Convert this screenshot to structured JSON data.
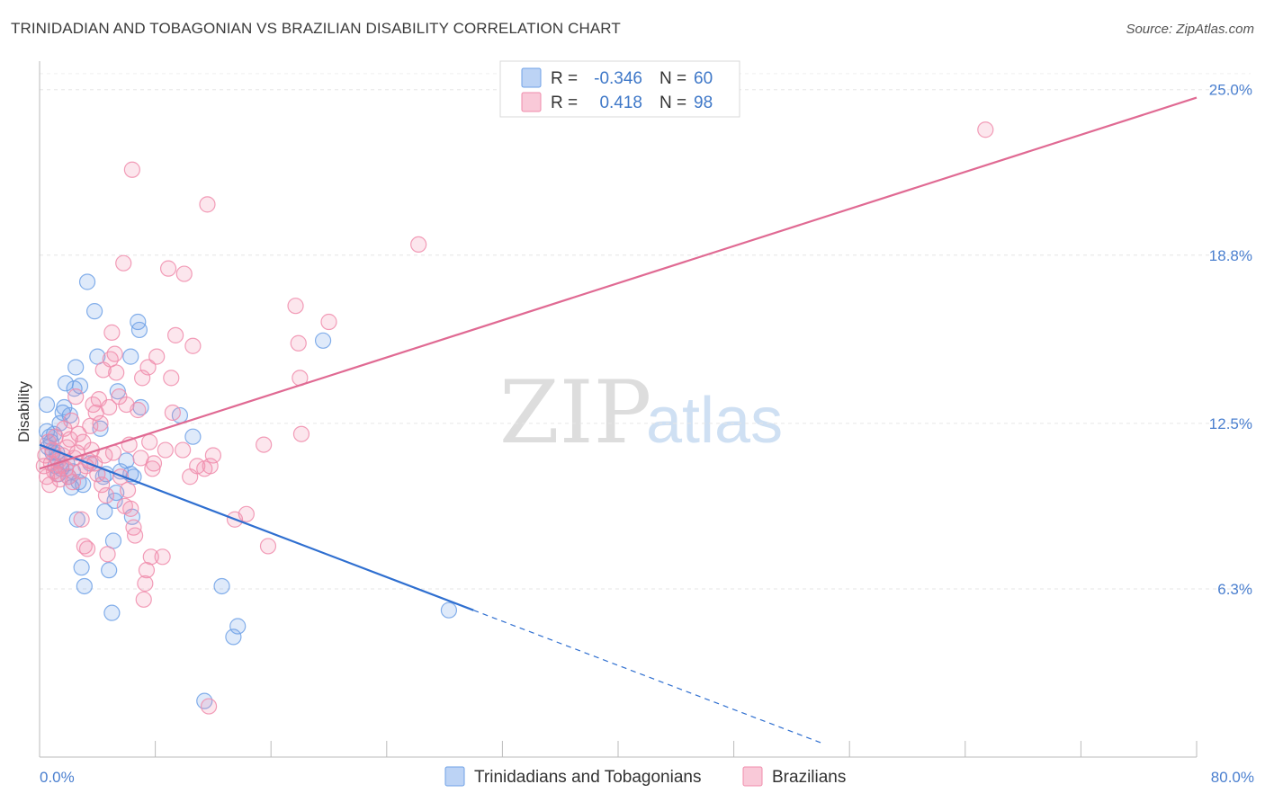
{
  "header": {
    "title": "TRINIDADIAN AND TOBAGONIAN VS BRAZILIAN DISABILITY CORRELATION CHART",
    "source": "Source: ZipAtlas.com"
  },
  "watermark": {
    "zip": "ZIP",
    "atlas": "atlas"
  },
  "chart_data": {
    "type": "scatter",
    "title": "TRINIDADIAN AND TOBAGONIAN VS BRAZILIAN DISABILITY CORRELATION CHART",
    "xlabel": "",
    "ylabel": "Disability",
    "xlim": [
      0,
      80
    ],
    "ylim": [
      0,
      26
    ],
    "x_tick_labels": [
      "0.0%",
      "80.0%"
    ],
    "y_ticks": [
      6.3,
      12.5,
      18.8,
      25.0
    ],
    "y_tick_labels": [
      "6.3%",
      "12.5%",
      "18.8%",
      "25.0%"
    ],
    "grid": true,
    "legend": {
      "placement": "top-center",
      "entries": [
        {
          "r_label": "R =",
          "r_value": "-0.346",
          "n_label": "N =",
          "n_value": "60"
        },
        {
          "r_label": "R =",
          "r_value": "0.418",
          "n_label": "N =",
          "n_value": "98"
        }
      ]
    },
    "series": [
      {
        "name": "Trinidadians and Tobagonians",
        "color": "#6fa1e6",
        "line_color": "#2f6fd0",
        "trend": {
          "x0": 0,
          "y0": 11.7,
          "x1": 30,
          "y1": 5.5,
          "dashed_to_x": 54
        },
        "points": [
          [
            0.5,
            13.2
          ],
          [
            0.5,
            12.2
          ],
          [
            0.6,
            11.6
          ],
          [
            0.7,
            12.0
          ],
          [
            0.8,
            11.8
          ],
          [
            0.9,
            11.4
          ],
          [
            1.0,
            12.1
          ],
          [
            1.1,
            10.9
          ],
          [
            1.2,
            11.2
          ],
          [
            1.3,
            10.6
          ],
          [
            1.4,
            12.5
          ],
          [
            1.5,
            10.8
          ],
          [
            1.6,
            12.9
          ],
          [
            1.7,
            13.1
          ],
          [
            1.8,
            14.0
          ],
          [
            1.9,
            11.0
          ],
          [
            2.0,
            10.5
          ],
          [
            2.1,
            12.8
          ],
          [
            2.2,
            10.1
          ],
          [
            2.3,
            10.7
          ],
          [
            2.4,
            13.8
          ],
          [
            2.5,
            14.6
          ],
          [
            2.6,
            8.9
          ],
          [
            2.7,
            10.3
          ],
          [
            2.8,
            13.9
          ],
          [
            2.9,
            7.1
          ],
          [
            3.0,
            10.2
          ],
          [
            3.1,
            6.4
          ],
          [
            3.3,
            17.8
          ],
          [
            3.5,
            11.0
          ],
          [
            3.8,
            16.7
          ],
          [
            4.0,
            15.0
          ],
          [
            4.2,
            12.3
          ],
          [
            4.4,
            10.5
          ],
          [
            4.5,
            9.2
          ],
          [
            4.6,
            10.6
          ],
          [
            4.8,
            7.0
          ],
          [
            5.0,
            5.4
          ],
          [
            5.1,
            8.1
          ],
          [
            5.2,
            9.6
          ],
          [
            5.3,
            9.9
          ],
          [
            5.4,
            13.7
          ],
          [
            5.6,
            10.7
          ],
          [
            6.0,
            11.1
          ],
          [
            6.3,
            15.0
          ],
          [
            6.3,
            10.6
          ],
          [
            6.4,
            9.0
          ],
          [
            6.5,
            10.5
          ],
          [
            6.8,
            16.3
          ],
          [
            6.9,
            16.0
          ],
          [
            7.0,
            13.1
          ],
          [
            9.7,
            12.8
          ],
          [
            10.6,
            12.0
          ],
          [
            11.4,
            2.1
          ],
          [
            12.6,
            6.4
          ],
          [
            13.4,
            4.5
          ],
          [
            13.7,
            4.9
          ],
          [
            19.6,
            15.6
          ],
          [
            28.3,
            5.5
          ],
          [
            1.2,
            11.4
          ]
        ]
      },
      {
        "name": "Brazilians",
        "color": "#f08cab",
        "line_color": "#e06a93",
        "trend": {
          "x0": 0,
          "y0": 10.8,
          "x1": 80,
          "y1": 24.7
        },
        "points": [
          [
            0.3,
            10.9
          ],
          [
            0.4,
            11.3
          ],
          [
            0.5,
            10.5
          ],
          [
            0.6,
            11.8
          ],
          [
            0.7,
            10.2
          ],
          [
            0.8,
            11.0
          ],
          [
            0.9,
            11.5
          ],
          [
            1.0,
            10.7
          ],
          [
            1.1,
            12.0
          ],
          [
            1.2,
            10.6
          ],
          [
            1.3,
            11.1
          ],
          [
            1.4,
            10.4
          ],
          [
            1.5,
            10.9
          ],
          [
            1.6,
            11.3
          ],
          [
            1.7,
            12.3
          ],
          [
            1.8,
            10.8
          ],
          [
            1.9,
            11.6
          ],
          [
            2.0,
            10.5
          ],
          [
            2.1,
            11.9
          ],
          [
            2.2,
            12.6
          ],
          [
            2.3,
            10.3
          ],
          [
            2.4,
            11.2
          ],
          [
            2.5,
            13.5
          ],
          [
            2.6,
            11.4
          ],
          [
            2.7,
            12.1
          ],
          [
            2.8,
            10.7
          ],
          [
            2.9,
            8.9
          ],
          [
            3.0,
            11.8
          ],
          [
            3.1,
            7.9
          ],
          [
            3.2,
            10.9
          ],
          [
            3.3,
            7.8
          ],
          [
            3.4,
            11.1
          ],
          [
            3.5,
            12.4
          ],
          [
            3.6,
            11.5
          ],
          [
            3.7,
            13.2
          ],
          [
            3.8,
            11.0
          ],
          [
            3.9,
            12.9
          ],
          [
            4.0,
            10.6
          ],
          [
            4.1,
            13.4
          ],
          [
            4.2,
            12.5
          ],
          [
            4.3,
            10.2
          ],
          [
            4.4,
            14.5
          ],
          [
            4.5,
            11.3
          ],
          [
            4.6,
            9.8
          ],
          [
            4.7,
            7.6
          ],
          [
            4.8,
            13.1
          ],
          [
            4.9,
            14.9
          ],
          [
            5.0,
            15.9
          ],
          [
            5.1,
            11.4
          ],
          [
            5.2,
            15.1
          ],
          [
            5.3,
            14.4
          ],
          [
            5.5,
            13.5
          ],
          [
            5.6,
            10.5
          ],
          [
            5.8,
            18.5
          ],
          [
            5.9,
            9.4
          ],
          [
            6.0,
            13.2
          ],
          [
            6.1,
            10.0
          ],
          [
            6.2,
            11.7
          ],
          [
            6.3,
            9.3
          ],
          [
            6.4,
            22.0
          ],
          [
            6.5,
            8.6
          ],
          [
            6.6,
            8.3
          ],
          [
            6.8,
            13.0
          ],
          [
            7.0,
            11.2
          ],
          [
            7.1,
            14.2
          ],
          [
            7.2,
            5.9
          ],
          [
            7.3,
            6.5
          ],
          [
            7.4,
            7.0
          ],
          [
            7.5,
            14.6
          ],
          [
            7.6,
            11.8
          ],
          [
            7.7,
            7.5
          ],
          [
            7.8,
            10.8
          ],
          [
            7.9,
            11.0
          ],
          [
            8.1,
            15.0
          ],
          [
            8.5,
            7.5
          ],
          [
            8.7,
            11.5
          ],
          [
            8.9,
            18.3
          ],
          [
            9.1,
            14.2
          ],
          [
            9.2,
            12.9
          ],
          [
            9.4,
            15.8
          ],
          [
            9.9,
            11.5
          ],
          [
            10.0,
            18.1
          ],
          [
            10.4,
            10.5
          ],
          [
            10.6,
            15.4
          ],
          [
            10.9,
            10.9
          ],
          [
            11.4,
            10.8
          ],
          [
            11.6,
            20.7
          ],
          [
            11.8,
            10.9
          ],
          [
            12.0,
            11.3
          ],
          [
            11.7,
            1.9
          ],
          [
            13.5,
            8.9
          ],
          [
            14.3,
            9.1
          ],
          [
            15.5,
            11.7
          ],
          [
            15.8,
            7.9
          ],
          [
            17.7,
            16.9
          ],
          [
            17.9,
            15.5
          ],
          [
            18.0,
            14.2
          ],
          [
            18.1,
            12.1
          ]
        ],
        "extra_points": [
          [
            20.0,
            16.3
          ],
          [
            26.2,
            19.2
          ],
          [
            65.4,
            23.5
          ]
        ]
      }
    ]
  },
  "bottom_legend": [
    {
      "label": "Trinidadians and Tobagonians",
      "color": "#6fa1e6"
    },
    {
      "label": "Brazilians",
      "color": "#f08cab"
    }
  ]
}
